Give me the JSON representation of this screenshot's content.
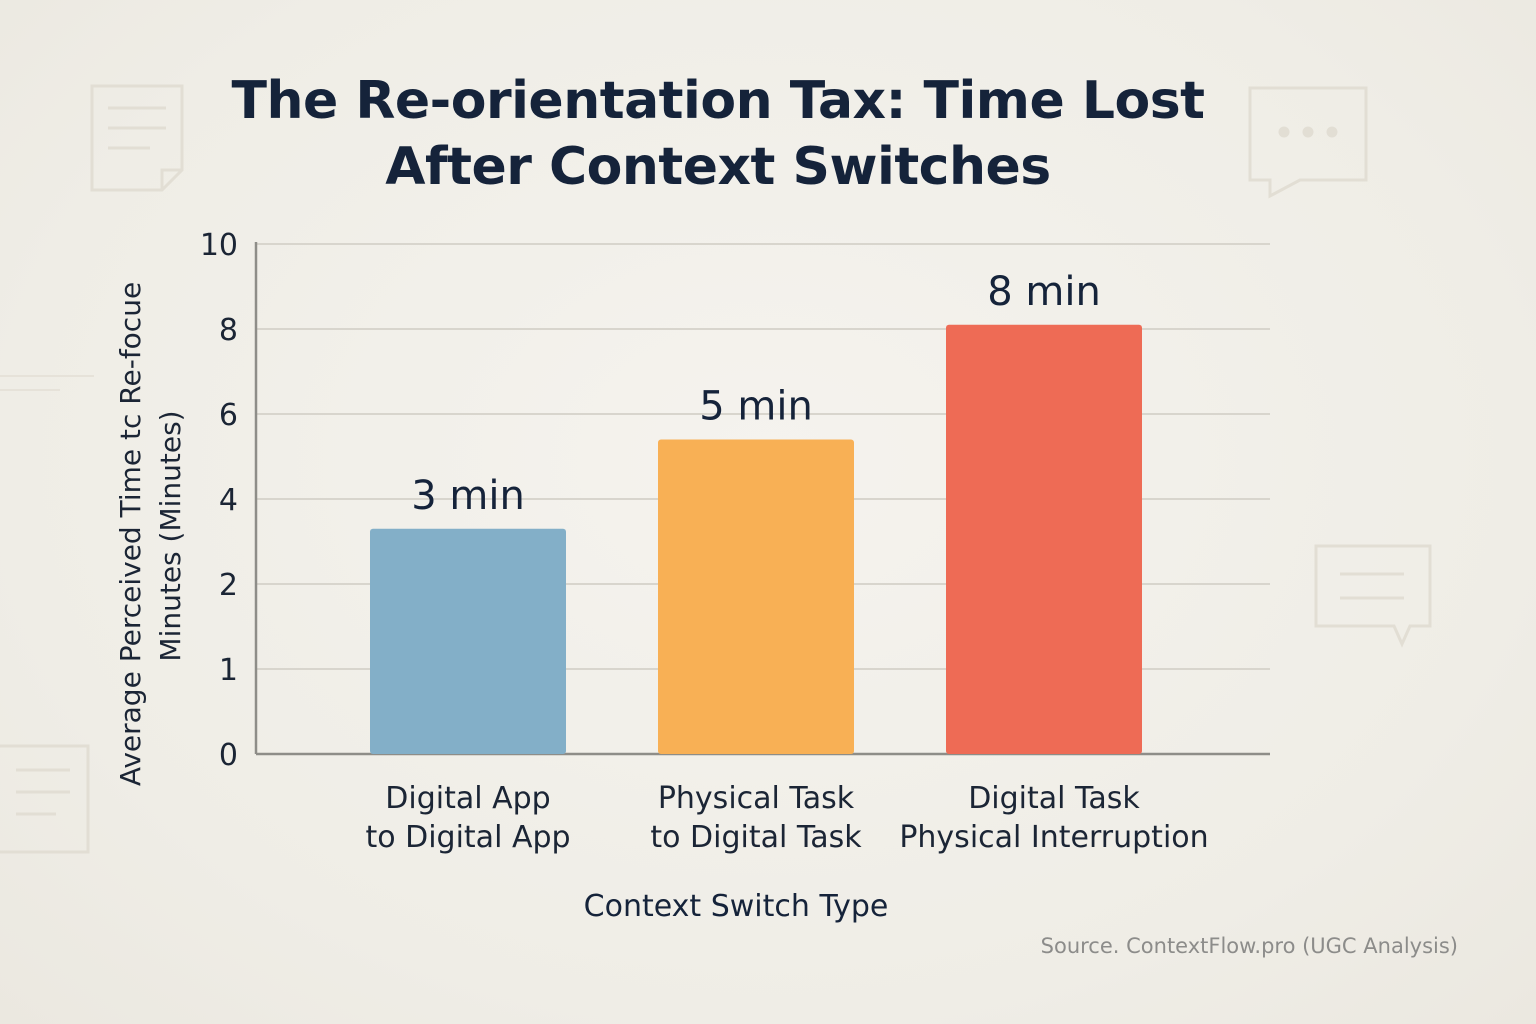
{
  "title_line1": "The Re-orientation Tax: Time Lost",
  "title_line2": "After Context Switches",
  "source": "Source. ContextFlow.pro (UGC Analysis)",
  "chart_data": {
    "type": "bar",
    "categories": [
      [
        "Digital App",
        "to Digital App"
      ],
      [
        "Physical Task",
        "to Digital Task"
      ],
      [
        "Digital Task",
        "Physical Interruption"
      ]
    ],
    "values": [
      3.3,
      5.4,
      8.1
    ],
    "value_labels": [
      "3 min",
      "5 min",
      "8 min"
    ],
    "bar_colors": [
      "#83afc8",
      "#f8b055",
      "#ee6b55"
    ],
    "xlabel": "Context Switch Type",
    "ylabel_lines": [
      "Average Perceived Time tc Re-focue",
      "Minutes (Minutes)"
    ],
    "y_ticks": [
      {
        "value": 0,
        "label": "0"
      },
      {
        "value": 1,
        "label": "1"
      },
      {
        "value": 2,
        "label": "2"
      },
      {
        "value": 4,
        "label": "4"
      },
      {
        "value": 6,
        "label": "6"
      },
      {
        "value": 8,
        "label": "8"
      },
      {
        "value": 10,
        "label": "10"
      }
    ],
    "ylim": [
      0,
      10
    ],
    "grid": true
  }
}
